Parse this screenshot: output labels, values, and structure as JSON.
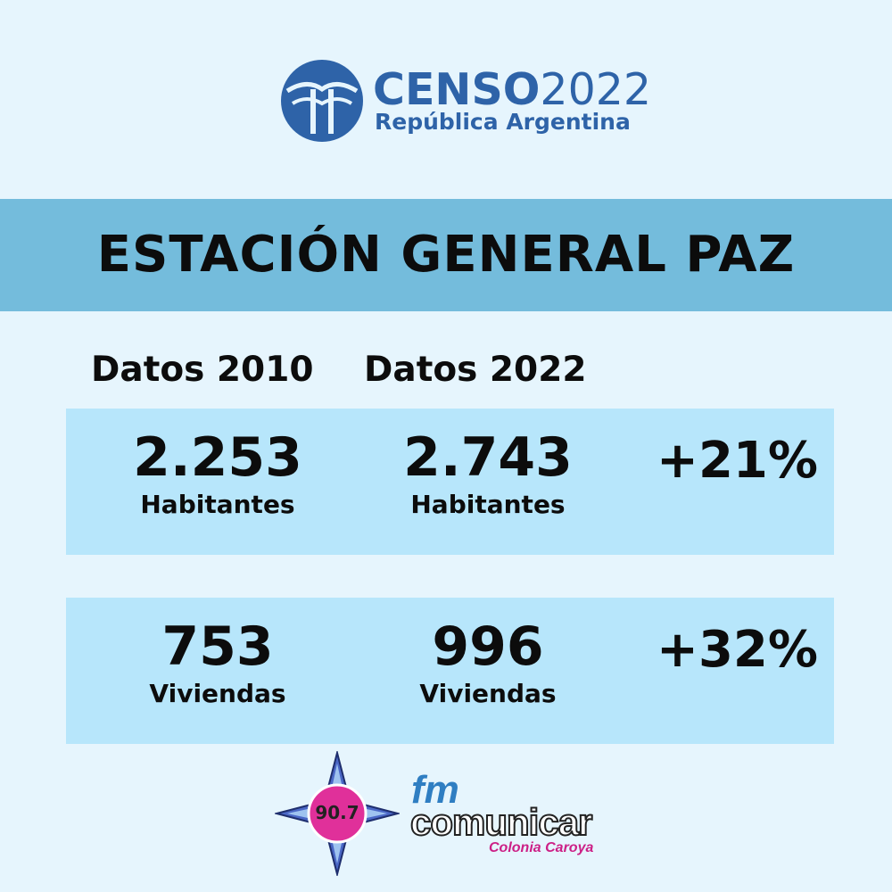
{
  "header": {
    "logo_word": "CENSO",
    "logo_year": "2022",
    "logo_subtitle": "República Argentina"
  },
  "banner": {
    "title": "ESTACIÓN GENERAL PAZ"
  },
  "columns": {
    "col_2010": "Datos 2010",
    "col_2022": "Datos 2022"
  },
  "rows": [
    {
      "value_2010": "2.253",
      "label_2010": "Habitantes",
      "value_2022": "2.743",
      "label_2022": "Habitantes",
      "change": "+21%"
    },
    {
      "value_2010": "753",
      "label_2010": "Viviendas",
      "value_2022": "996",
      "label_2022": "Viviendas",
      "change": "+32%"
    }
  ],
  "footer": {
    "frequency": "90.7",
    "fm": "fm",
    "brand": "comunicar",
    "place": "Colonia Caroya"
  },
  "colors": {
    "background": "#e6f5fd",
    "banner": "#74bcdc",
    "row": "#b7e6fb",
    "logo_blue": "#2e63a8",
    "star_pink": "#e0309a"
  }
}
